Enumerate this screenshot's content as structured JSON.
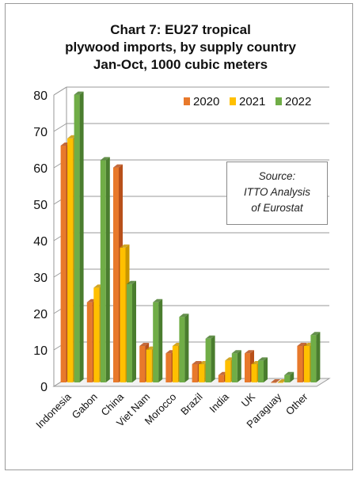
{
  "chart_data": {
    "type": "bar",
    "title": [
      "Chart 7: EU27 tropical",
      "plywood imports, by supply country",
      "Jan-Oct, 1000 cubic meters"
    ],
    "categories": [
      "Indonesia",
      "Gabon",
      "China",
      "Viet Nam",
      "Morocco",
      "Brazil",
      "India",
      "UK",
      "Paraguay",
      "Other"
    ],
    "series": [
      {
        "name": "2020",
        "values": [
          65,
          22,
          59,
          10,
          8,
          5,
          2,
          8,
          0,
          10
        ],
        "color": "#e8792b",
        "side_color": "#b8501a"
      },
      {
        "name": "2021",
        "values": [
          67,
          26,
          37,
          9,
          10,
          5,
          6,
          5,
          0,
          10
        ],
        "color": "#ffc000",
        "side_color": "#c99700"
      },
      {
        "name": "2022",
        "values": [
          79,
          61,
          27,
          22,
          18,
          12,
          8,
          6,
          2,
          13
        ],
        "color": "#70ad47",
        "side_color": "#4a7d2e"
      }
    ],
    "xlabel": "",
    "ylabel": "",
    "ylim": [
      0,
      80
    ],
    "yticks": [
      "0",
      "10",
      "20",
      "30",
      "40",
      "50",
      "60",
      "70",
      "80"
    ],
    "grid": true,
    "legend_placement": "top-right"
  },
  "source_note": [
    "Source:",
    "ITTO Analysis",
    "of Eurostat"
  ]
}
